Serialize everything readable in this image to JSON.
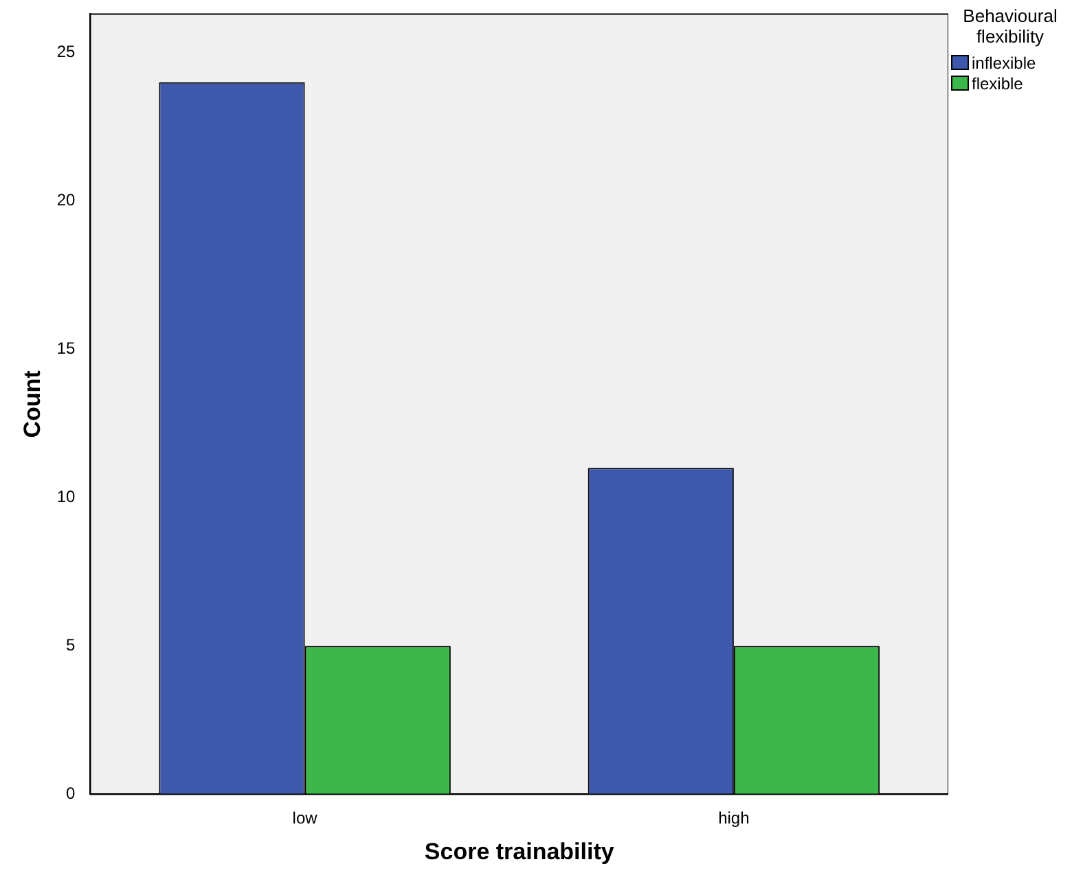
{
  "chart_data": {
    "type": "bar",
    "xlabel": "Score trainability",
    "ylabel": "Count",
    "legend_title": "Behavioural flexibility",
    "categories": [
      "low",
      "high"
    ],
    "series": [
      {
        "name": "inflexible",
        "color": "#3e58ac",
        "values": [
          24,
          11
        ]
      },
      {
        "name": "flexible",
        "color": "#3cb84b",
        "values": [
          5,
          5
        ]
      }
    ],
    "ylim": [
      0,
      26.3
    ],
    "yticks": [
      0,
      5,
      10,
      15,
      20,
      25
    ],
    "grid": false,
    "legend": "right"
  }
}
